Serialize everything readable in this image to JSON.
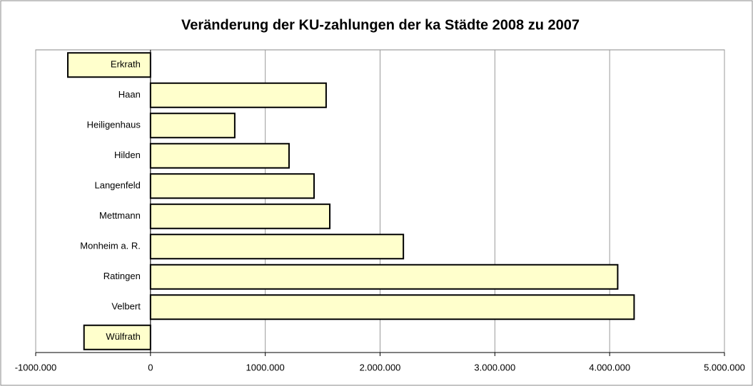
{
  "chart_data": {
    "type": "barh",
    "title": "Veränderung der KU-zahlungen der ka Städte 2008 zu 2007",
    "categories": [
      "Erkrath",
      "Haan",
      "Heiligenhaus",
      "Hilden",
      "Langenfeld",
      "Mettmann",
      "Monheim a. R.",
      "Ratingen",
      "Velbert",
      "Wülfrath"
    ],
    "values": [
      -720000,
      1530000,
      734000,
      1207000,
      1425000,
      1562000,
      2203000,
      4070000,
      4213000,
      -579000
    ],
    "color": "#ffffcc",
    "xlim": [
      -1000000,
      5000000
    ],
    "xticks": [
      {
        "value": -1000000,
        "label": "-1000.000"
      },
      0,
      {
        "value": 1000000,
        "label": "1000.000"
      },
      {
        "value": 2000000,
        "label": "2.000.000"
      },
      {
        "value": 3000000,
        "label": "3.000.000"
      },
      {
        "value": 4000000,
        "label": "4.000.000"
      },
      {
        "value": 5000000,
        "label": "5.000.000"
      }
    ],
    "grid": true
  }
}
